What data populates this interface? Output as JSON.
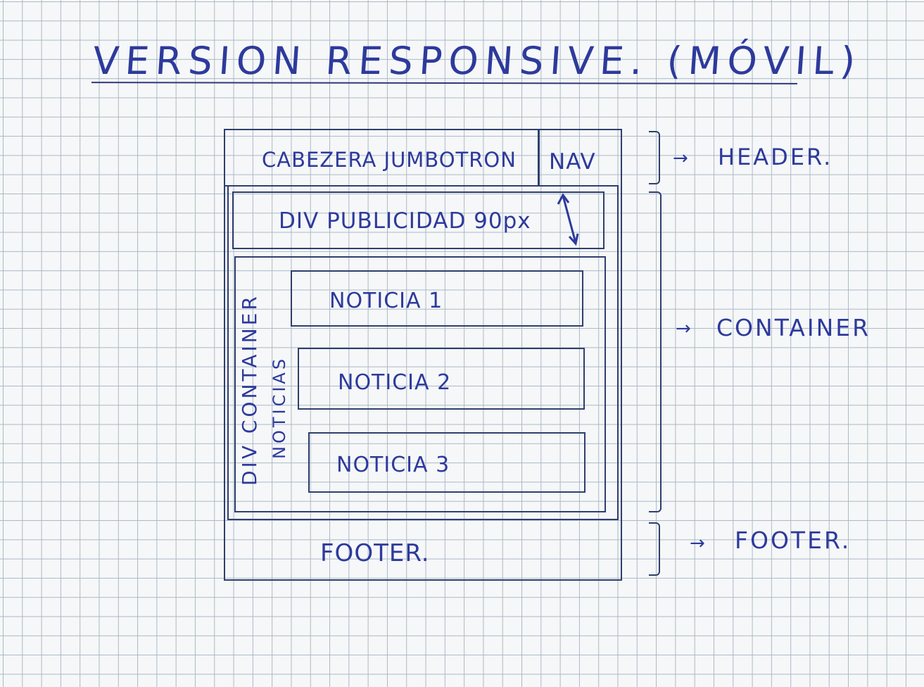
{
  "title": "VERSION RESPONSIVE. (MÓVIL)",
  "header": {
    "jumbotron_label": "CABEZERA JUMBOTRON",
    "nav_label": "NAV"
  },
  "ad": {
    "label": "DIV PUBLICIDAD 90px"
  },
  "news_container": {
    "label_line1": "DIV CONTAINER",
    "label_line2": "NOTICIAS",
    "items": [
      "NOTICIA 1",
      "NOTICIA 2",
      "NOTICIA 3"
    ]
  },
  "footer": {
    "label": "FOOTER."
  },
  "annotations": {
    "header": "HEADER.",
    "container": "CONTAINER",
    "footer": "FOOTER."
  },
  "colors": {
    "ink": "#2d3a9c",
    "grid": "#aab9c7",
    "paper": "#f6f7f8"
  },
  "icons": [
    "arrow-right-icon",
    "double-arrow-icon"
  ]
}
